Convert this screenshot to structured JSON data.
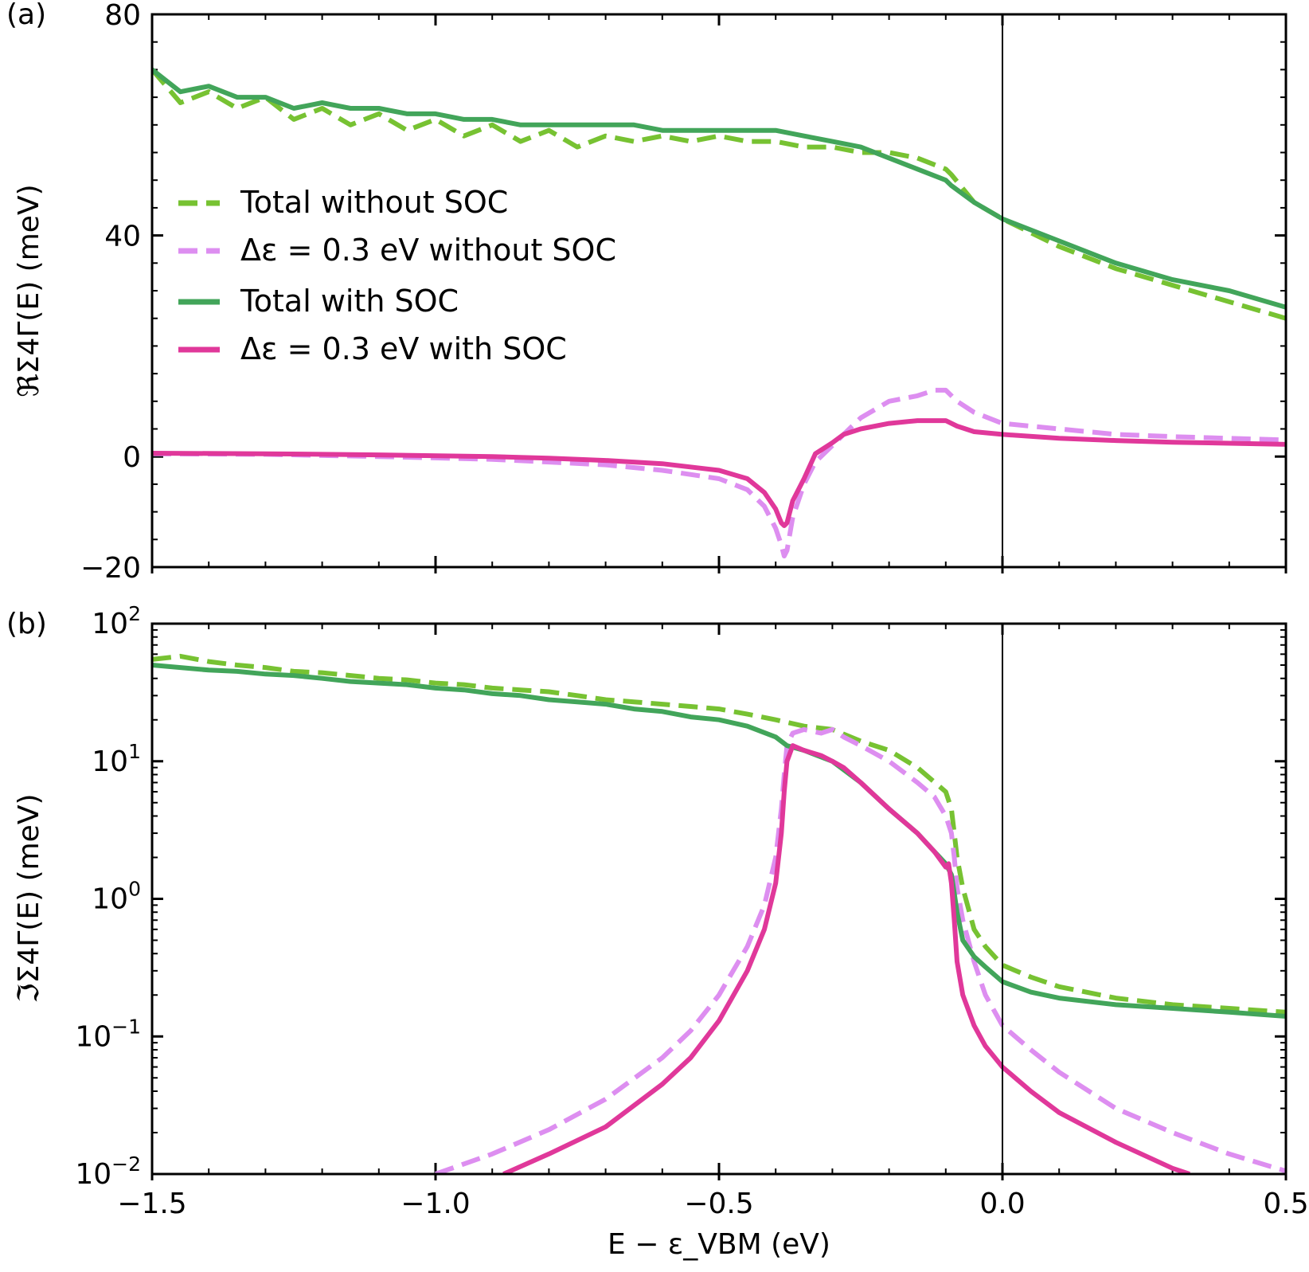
{
  "figure": {
    "xlabel": "E − ε_VBM (eV)",
    "xticks": [
      "−1.5",
      "−1.0",
      "−0.5",
      "0.0",
      "0.5"
    ],
    "colors": {
      "total_without_soc": "#77c232",
      "delta_without_soc": "#dd8ef0",
      "total_with_soc": "#42a55a",
      "delta_with_soc": "#e0389a"
    }
  },
  "chart_data": [
    {
      "panel_label": "(a)",
      "type": "line",
      "ylabel": "ℜΣ4Γ(E) (meV)",
      "xlim": [
        -1.5,
        0.5
      ],
      "ylim": [
        -20,
        80
      ],
      "yscale": "linear",
      "yticks": [
        "−20",
        "0",
        "40",
        "80"
      ],
      "vline_x": 0.0,
      "legend_position": "center-left",
      "series": [
        {
          "name": "Total without SOC",
          "style": "dashed",
          "x": [
            -1.5,
            -1.45,
            -1.4,
            -1.35,
            -1.3,
            -1.25,
            -1.2,
            -1.15,
            -1.1,
            -1.05,
            -1.0,
            -0.95,
            -0.9,
            -0.85,
            -0.8,
            -0.75,
            -0.7,
            -0.65,
            -0.6,
            -0.55,
            -0.5,
            -0.45,
            -0.4,
            -0.35,
            -0.3,
            -0.25,
            -0.2,
            -0.15,
            -0.1,
            -0.09,
            -0.05,
            0.0,
            0.1,
            0.2,
            0.3,
            0.4,
            0.5
          ],
          "y": [
            70,
            64,
            66,
            63,
            65,
            61,
            63,
            60,
            62,
            59,
            61,
            58,
            60,
            57,
            59,
            56,
            58,
            57,
            58,
            57,
            58,
            57,
            57,
            56,
            56,
            55,
            55,
            54,
            52,
            51,
            46,
            43,
            38,
            34,
            31,
            28,
            25
          ]
        },
        {
          "name": "Δε = 0.3 eV without SOC",
          "style": "dashed",
          "x": [
            -1.5,
            -1.3,
            -1.1,
            -0.9,
            -0.8,
            -0.7,
            -0.6,
            -0.5,
            -0.45,
            -0.42,
            -0.4,
            -0.39,
            -0.385,
            -0.38,
            -0.37,
            -0.35,
            -0.33,
            -0.3,
            -0.28,
            -0.25,
            -0.2,
            -0.15,
            -0.12,
            -0.1,
            -0.08,
            -0.05,
            0.0,
            0.1,
            0.2,
            0.3,
            0.4,
            0.5
          ],
          "y": [
            0.5,
            0.4,
            0,
            -0.5,
            -1,
            -1.5,
            -2.5,
            -4,
            -6,
            -9,
            -13,
            -16,
            -18,
            -17,
            -11,
            -5,
            -1,
            2,
            4,
            7,
            10,
            11,
            12,
            12,
            10,
            8,
            6,
            5,
            4,
            3.6,
            3.3,
            3
          ]
        },
        {
          "name": "Total with SOC",
          "style": "solid",
          "x": [
            -1.5,
            -1.45,
            -1.4,
            -1.35,
            -1.3,
            -1.25,
            -1.2,
            -1.15,
            -1.1,
            -1.05,
            -1.0,
            -0.95,
            -0.9,
            -0.85,
            -0.8,
            -0.75,
            -0.7,
            -0.65,
            -0.6,
            -0.55,
            -0.5,
            -0.45,
            -0.4,
            -0.35,
            -0.3,
            -0.25,
            -0.2,
            -0.15,
            -0.1,
            -0.09,
            -0.05,
            0.0,
            0.1,
            0.2,
            0.3,
            0.4,
            0.5
          ],
          "y": [
            70,
            66,
            67,
            65,
            65,
            63,
            64,
            63,
            63,
            62,
            62,
            61,
            61,
            60,
            60,
            60,
            60,
            60,
            59,
            59,
            59,
            59,
            59,
            58,
            57,
            56,
            54,
            52,
            50,
            49,
            46,
            43,
            39,
            35,
            32,
            30,
            27
          ]
        },
        {
          "name": "Δε = 0.3 eV with SOC",
          "style": "solid",
          "x": [
            -1.5,
            -1.3,
            -1.1,
            -0.9,
            -0.8,
            -0.7,
            -0.6,
            -0.5,
            -0.45,
            -0.42,
            -0.4,
            -0.39,
            -0.385,
            -0.38,
            -0.37,
            -0.35,
            -0.33,
            -0.3,
            -0.28,
            -0.25,
            -0.2,
            -0.15,
            -0.12,
            -0.1,
            -0.08,
            -0.05,
            0.0,
            0.1,
            0.2,
            0.3,
            0.4,
            0.5
          ],
          "y": [
            0.6,
            0.5,
            0.3,
            0,
            -0.3,
            -0.7,
            -1.3,
            -2.5,
            -4,
            -6.5,
            -9.5,
            -12,
            -12.5,
            -12,
            -8,
            -4,
            0.5,
            2.5,
            4,
            5,
            6,
            6.5,
            6.5,
            6.5,
            5.5,
            4.5,
            4,
            3.3,
            2.9,
            2.6,
            2.4,
            2.2
          ]
        }
      ]
    },
    {
      "panel_label": "(b)",
      "type": "line",
      "ylabel": "ℑΣ4Γ(E) (meV)",
      "xlim": [
        -1.5,
        0.5
      ],
      "ylim": [
        0.01,
        100
      ],
      "yscale": "log",
      "yticks": [
        {
          "base": "10",
          "exp": "−2"
        },
        {
          "base": "10",
          "exp": "−1"
        },
        {
          "base": "10",
          "exp": "0"
        },
        {
          "base": "10",
          "exp": "1"
        },
        {
          "base": "10",
          "exp": "2"
        }
      ],
      "vline_x": 0.0,
      "series": [
        {
          "name": "Total without SOC",
          "style": "dashed",
          "x": [
            -1.5,
            -1.45,
            -1.4,
            -1.35,
            -1.3,
            -1.25,
            -1.2,
            -1.15,
            -1.1,
            -1.05,
            -1.0,
            -0.95,
            -0.9,
            -0.85,
            -0.8,
            -0.75,
            -0.7,
            -0.65,
            -0.6,
            -0.55,
            -0.5,
            -0.45,
            -0.4,
            -0.35,
            -0.3,
            -0.25,
            -0.2,
            -0.15,
            -0.1,
            -0.09,
            -0.085,
            -0.08,
            -0.07,
            -0.05,
            -0.03,
            0.0,
            0.05,
            0.1,
            0.2,
            0.3,
            0.4,
            0.5
          ],
          "y": [
            55,
            58,
            53,
            50,
            48,
            45,
            44,
            42,
            40,
            39,
            37,
            36,
            34,
            33,
            32,
            30,
            28,
            27,
            26,
            25,
            24,
            22,
            20,
            18,
            17,
            14,
            12,
            9,
            6,
            4.5,
            3,
            2,
            1.2,
            0.6,
            0.45,
            0.33,
            0.27,
            0.23,
            0.19,
            0.17,
            0.16,
            0.15
          ]
        },
        {
          "name": "Δε = 0.3 eV without SOC",
          "style": "dashed",
          "x": [
            -1.0,
            -0.9,
            -0.8,
            -0.7,
            -0.6,
            -0.55,
            -0.5,
            -0.45,
            -0.42,
            -0.4,
            -0.39,
            -0.385,
            -0.38,
            -0.37,
            -0.35,
            -0.32,
            -0.3,
            -0.28,
            -0.25,
            -0.2,
            -0.15,
            -0.12,
            -0.1,
            -0.09,
            -0.085,
            -0.08,
            -0.07,
            -0.05,
            -0.03,
            0.0,
            0.05,
            0.1,
            0.2,
            0.3,
            0.4,
            0.5
          ],
          "y": [
            0.01,
            0.014,
            0.021,
            0.035,
            0.07,
            0.11,
            0.2,
            0.45,
            0.9,
            2,
            4.5,
            8,
            13,
            16,
            17,
            16,
            17,
            15,
            13,
            10,
            7,
            5.5,
            4,
            3,
            2,
            1.2,
            0.7,
            0.35,
            0.2,
            0.12,
            0.08,
            0.055,
            0.03,
            0.02,
            0.014,
            0.0105
          ]
        },
        {
          "name": "Total with SOC",
          "style": "solid",
          "x": [
            -1.5,
            -1.45,
            -1.4,
            -1.35,
            -1.3,
            -1.25,
            -1.2,
            -1.15,
            -1.1,
            -1.05,
            -1.0,
            -0.95,
            -0.9,
            -0.85,
            -0.8,
            -0.75,
            -0.7,
            -0.65,
            -0.6,
            -0.55,
            -0.5,
            -0.45,
            -0.4,
            -0.38,
            -0.35,
            -0.3,
            -0.25,
            -0.2,
            -0.15,
            -0.12,
            -0.1,
            -0.09,
            -0.085,
            -0.08,
            -0.07,
            -0.05,
            -0.03,
            0.0,
            0.05,
            0.1,
            0.2,
            0.3,
            0.4,
            0.5
          ],
          "y": [
            50,
            48,
            46,
            45,
            43,
            42,
            40,
            38,
            37,
            36,
            34,
            33,
            31,
            30,
            28,
            27,
            26,
            24,
            23,
            21,
            20,
            18,
            15,
            13,
            12,
            10,
            7,
            4.5,
            3,
            2.2,
            1.8,
            1.5,
            1.1,
            0.8,
            0.5,
            0.38,
            0.32,
            0.25,
            0.21,
            0.19,
            0.17,
            0.16,
            0.15,
            0.14
          ]
        },
        {
          "name": "Δε = 0.3 eV with SOC",
          "style": "solid",
          "x": [
            -0.88,
            -0.8,
            -0.7,
            -0.6,
            -0.55,
            -0.5,
            -0.45,
            -0.42,
            -0.4,
            -0.39,
            -0.385,
            -0.38,
            -0.37,
            -0.35,
            -0.32,
            -0.3,
            -0.28,
            -0.25,
            -0.2,
            -0.15,
            -0.12,
            -0.1,
            -0.095,
            -0.09,
            -0.085,
            -0.08,
            -0.07,
            -0.05,
            -0.03,
            0.0,
            0.05,
            0.1,
            0.2,
            0.3,
            0.33
          ],
          "y": [
            0.01,
            0.014,
            0.022,
            0.045,
            0.07,
            0.13,
            0.3,
            0.6,
            1.3,
            3,
            6,
            10,
            13,
            12,
            11,
            10,
            9,
            7,
            4.5,
            3,
            2.2,
            1.7,
            1.8,
            1.3,
            0.7,
            0.35,
            0.2,
            0.12,
            0.085,
            0.06,
            0.04,
            0.028,
            0.017,
            0.011,
            0.01
          ]
        }
      ]
    }
  ]
}
